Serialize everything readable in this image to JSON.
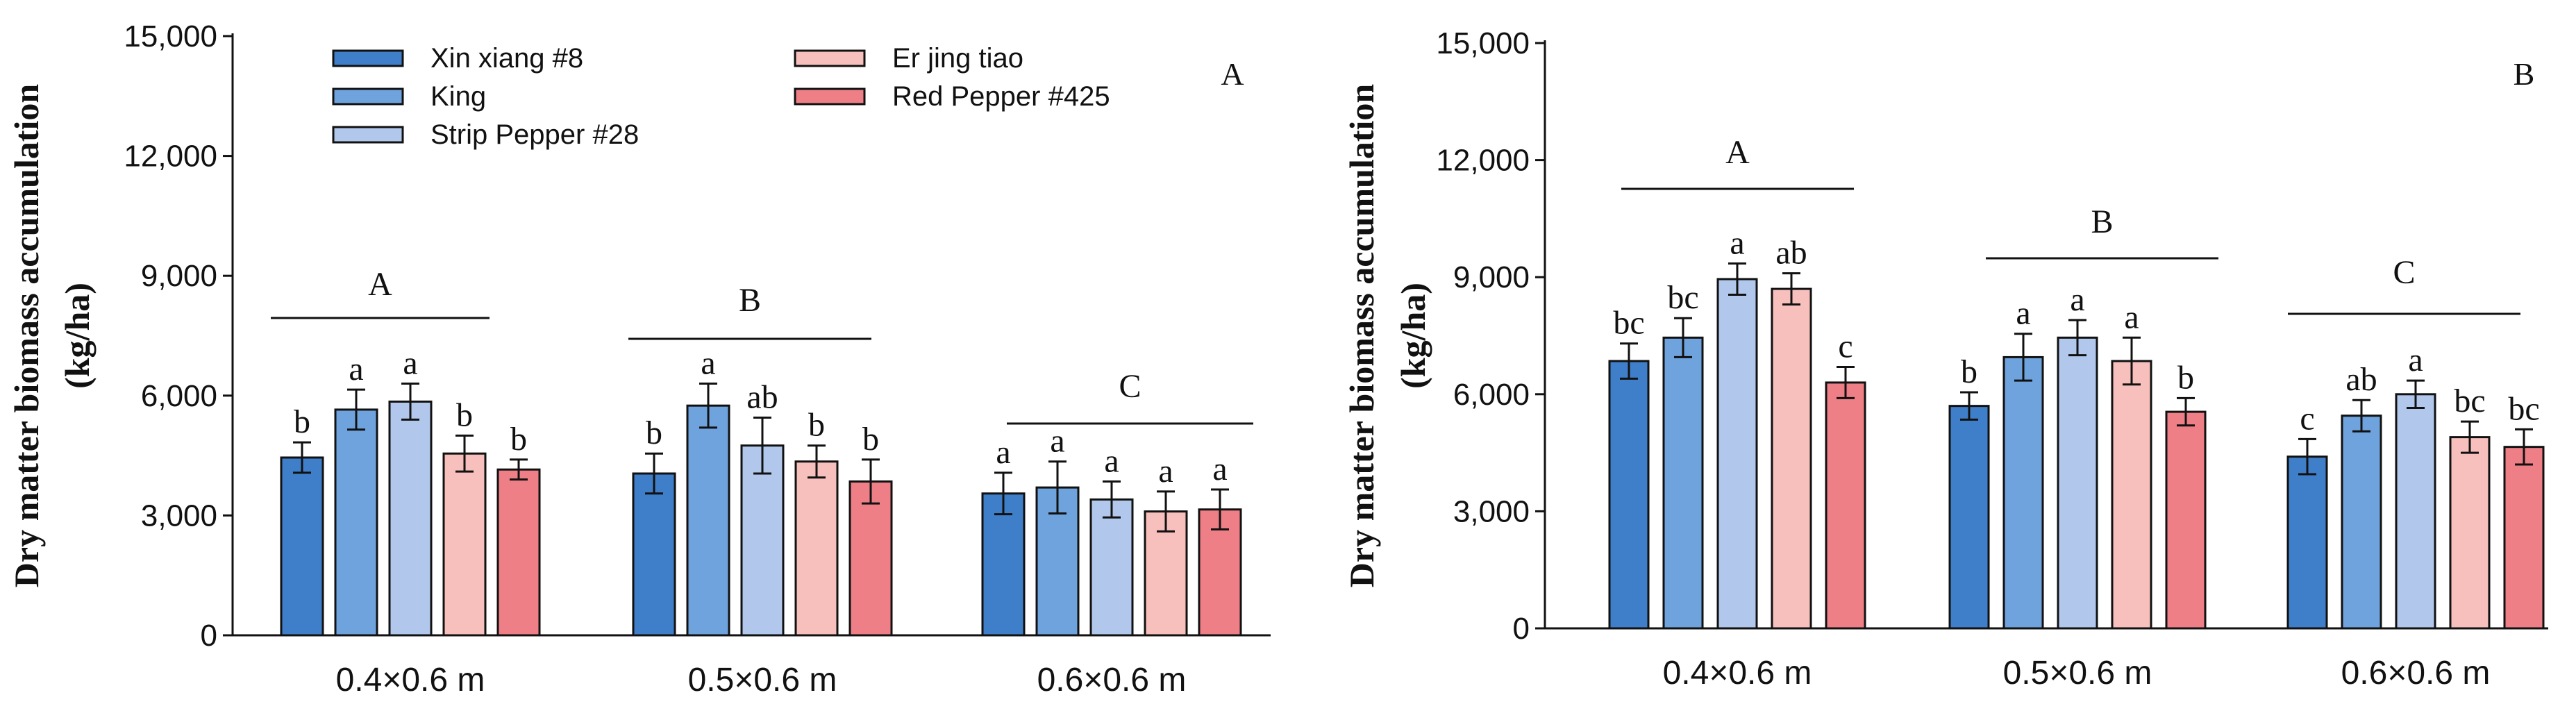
{
  "colors": {
    "Xin xiang #8": "#3f7fc9",
    "King": "#6fa3dd",
    "Strip Pepper #28": "#b1c8ec",
    "Er jing tiao": "#f7c0bd",
    "Red Pepper #425": "#ee7f86"
  },
  "chart_data": [
    {
      "type": "bar",
      "panel_label": "A",
      "ylabel_line1": "Dry matter biomass accumulation",
      "ylabel_line2": "(kg/ha)",
      "ylim": [
        0,
        15000
      ],
      "yticks": [
        0,
        3000,
        6000,
        9000,
        12000,
        15000
      ],
      "ytick_labels": [
        "0",
        "3,000",
        "6,000",
        "9,000",
        "12,000",
        "15,000"
      ],
      "categories": [
        "0.4×0.6 m",
        "0.5×0.6 m",
        "0.6×0.6 m"
      ],
      "legend": {
        "position": "top",
        "entries": [
          "Xin xiang #8",
          "King",
          "Strip Pepper #28",
          "Er jing tiao",
          "Red Pepper #425"
        ]
      },
      "series": [
        {
          "name": "Xin xiang #8",
          "values": [
            4450,
            4050,
            3550
          ],
          "errors": [
            380,
            500,
            520
          ],
          "letters": [
            "b",
            "b",
            "a"
          ]
        },
        {
          "name": "King",
          "values": [
            5650,
            5750,
            3700
          ],
          "errors": [
            500,
            550,
            650
          ],
          "letters": [
            "a",
            "a",
            "a"
          ]
        },
        {
          "name": "Strip Pepper #28",
          "values": [
            5850,
            4750,
            3400
          ],
          "errors": [
            450,
            700,
            450
          ],
          "letters": [
            "a",
            "ab",
            "a"
          ]
        },
        {
          "name": "Er jing tiao",
          "values": [
            4550,
            4350,
            3100
          ],
          "errors": [
            450,
            400,
            500
          ],
          "letters": [
            "b",
            "b",
            "a"
          ]
        },
        {
          "name": "Red Pepper #425",
          "values": [
            4150,
            3850,
            3150
          ],
          "errors": [
            250,
            550,
            500
          ],
          "letters": [
            "b",
            "b",
            "a"
          ]
        }
      ],
      "group_labels": [
        "A",
        "B",
        "C"
      ]
    },
    {
      "type": "bar",
      "panel_label": "B",
      "ylabel_line1": "Dry matter biomass accumulation",
      "ylabel_line2": "(kg/ha)",
      "ylim": [
        0,
        15000
      ],
      "yticks": [
        0,
        3000,
        6000,
        9000,
        12000,
        15000
      ],
      "ytick_labels": [
        "0",
        "3,000",
        "6,000",
        "9,000",
        "12,000",
        "15,000"
      ],
      "categories": [
        "0.4×0.6 m",
        "0.5×0.6 m",
        "0.6×0.6 m"
      ],
      "series": [
        {
          "name": "Xin xiang #8",
          "values": [
            6850,
            5700,
            4400
          ],
          "errors": [
            450,
            350,
            450
          ],
          "letters": [
            "bc",
            "b",
            "c"
          ]
        },
        {
          "name": "King",
          "values": [
            7450,
            6950,
            5450
          ],
          "errors": [
            500,
            600,
            400
          ],
          "letters": [
            "bc",
            "a",
            "ab"
          ]
        },
        {
          "name": "Strip Pepper #28",
          "values": [
            8950,
            7450,
            6000
          ],
          "errors": [
            400,
            450,
            350
          ],
          "letters": [
            "a",
            "a",
            "a"
          ]
        },
        {
          "name": "Er jing tiao",
          "values": [
            8700,
            6850,
            4900
          ],
          "errors": [
            400,
            600,
            400
          ],
          "letters": [
            "ab",
            "a",
            "bc"
          ]
        },
        {
          "name": "Red Pepper #425",
          "values": [
            6300,
            5550,
            4650
          ],
          "errors": [
            400,
            350,
            450
          ],
          "letters": [
            "c",
            "b",
            "bc"
          ]
        }
      ],
      "group_labels": [
        "A",
        "B",
        "C"
      ]
    }
  ]
}
